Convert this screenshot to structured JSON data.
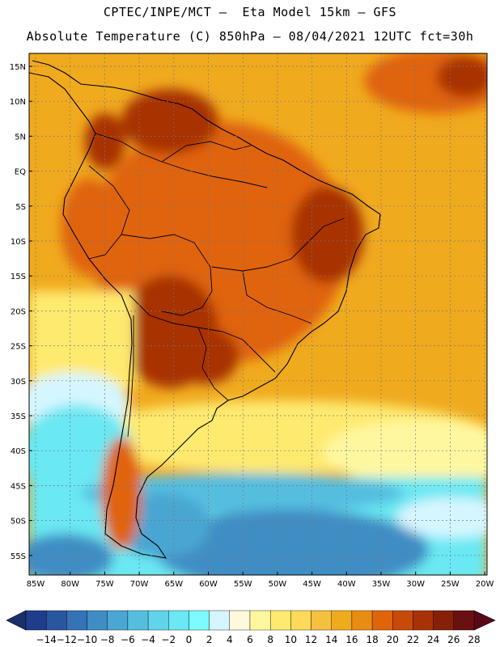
{
  "header": {
    "line1": "CPTEC/INPE/MCT –  Eta Model 15km – GFS",
    "line2": "Absolute Temperature (C) 850hPa – 08/04/2021 12UTC fct=30h"
  },
  "map": {
    "lat_ticks": [
      "15N",
      "10N",
      "5N",
      "EQ",
      "5S",
      "10S",
      "15S",
      "20S",
      "25S",
      "30S",
      "35S",
      "40S",
      "45S",
      "50S",
      "55S"
    ],
    "lon_ticks": [
      "85W",
      "80W",
      "75W",
      "70W",
      "65W",
      "60W",
      "55W",
      "50W",
      "45W",
      "40W",
      "35W",
      "30W",
      "25W",
      "20W"
    ],
    "grid": true
  },
  "colorbar": {
    "labels": [
      "-14",
      "-12",
      "-10",
      "-8",
      "-6",
      "-4",
      "-2",
      "0",
      "2",
      "4",
      "6",
      "8",
      "10",
      "12",
      "14",
      "16",
      "18",
      "20",
      "22",
      "24",
      "26",
      "28"
    ],
    "colors": [
      "#1f3d8c",
      "#2a56a0",
      "#3473b5",
      "#3f8dc4",
      "#4aa6d2",
      "#55bedf",
      "#5fd4ea",
      "#6ae8f3",
      "#7cfcff",
      "#d6f6ff",
      "#fff8dc",
      "#fff7a0",
      "#ffea70",
      "#ffd95a",
      "#f5c040",
      "#f0aa1e",
      "#eb8c12",
      "#e0640a",
      "#c84a08",
      "#a83206",
      "#862008",
      "#6b1010"
    ],
    "under_color": "#1a2f6e",
    "over_color": "#5a0818"
  },
  "field_colors": {
    "hot": "#a83206",
    "warm": "#e0640a",
    "mild": "#f0aa1e",
    "cool": "#ffea70",
    "cold": "#6ae8f3",
    "very_cold": "#3f8dc4"
  }
}
